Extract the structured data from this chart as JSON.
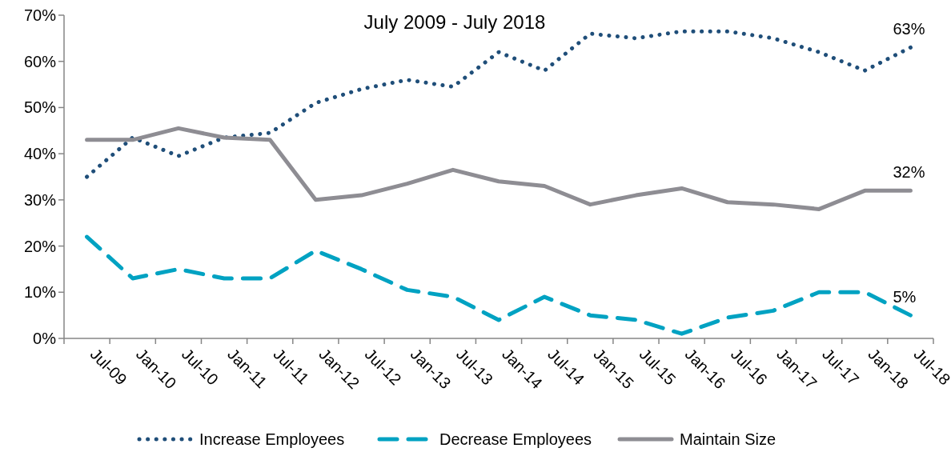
{
  "chart_data": {
    "type": "line",
    "title": "July 2009 - July 2018",
    "categories": [
      "Jul-09",
      "Jan-10",
      "Jul-10",
      "Jan-11",
      "Jul-11",
      "Jan-12",
      "Jul-12",
      "Jan-13",
      "Jul-13",
      "Jan-14",
      "Jul-14",
      "Jan-15",
      "Jul-15",
      "Jan-16",
      "Jul-16",
      "Jan-17",
      "Jul-17",
      "Jan-18",
      "Jul-18"
    ],
    "series": [
      {
        "name": "Increase Employees",
        "color": "#1f4e79",
        "line_style": "dotted",
        "values": [
          35,
          43.5,
          39.5,
          43.5,
          44.5,
          51,
          54,
          56,
          54.5,
          62,
          58,
          66,
          65,
          66.5,
          66.5,
          65,
          62,
          58,
          63
        ],
        "value_labels": [
          null,
          null,
          null,
          null,
          null,
          null,
          null,
          null,
          null,
          null,
          null,
          null,
          null,
          null,
          null,
          null,
          null,
          null,
          "63%"
        ]
      },
      {
        "name": "Decrease Employees",
        "color": "#00a2c2",
        "line_style": "dashed",
        "values": [
          22,
          13,
          15,
          13,
          13,
          19,
          15,
          10.5,
          9,
          4,
          9,
          5,
          4,
          1,
          4.5,
          6,
          10,
          10,
          5
        ],
        "value_labels": [
          null,
          null,
          null,
          null,
          null,
          null,
          null,
          null,
          null,
          null,
          null,
          null,
          null,
          null,
          null,
          null,
          null,
          null,
          "5%"
        ]
      },
      {
        "name": "Maintain Size",
        "color": "#8e8d93",
        "line_style": "solid",
        "values": [
          43,
          43,
          45.5,
          43.5,
          43,
          30,
          31,
          33.5,
          36.5,
          34,
          33,
          29,
          31,
          32.5,
          29.5,
          29,
          28,
          32,
          32
        ],
        "value_labels": [
          null,
          null,
          null,
          null,
          null,
          null,
          null,
          null,
          null,
          null,
          null,
          null,
          null,
          null,
          null,
          null,
          null,
          null,
          "32%"
        ]
      }
    ],
    "ylim": [
      0,
      70
    ],
    "yticks": [
      {
        "value": 0,
        "label": "0%"
      },
      {
        "value": 10,
        "label": "10%"
      },
      {
        "value": 20,
        "label": "20%"
      },
      {
        "value": 30,
        "label": "30%"
      },
      {
        "value": 40,
        "label": "40%"
      },
      {
        "value": 50,
        "label": "50%"
      },
      {
        "value": 60,
        "label": "60%"
      },
      {
        "value": 70,
        "label": "70%"
      }
    ],
    "grid": false,
    "legend": "bottom",
    "marker": "none"
  }
}
